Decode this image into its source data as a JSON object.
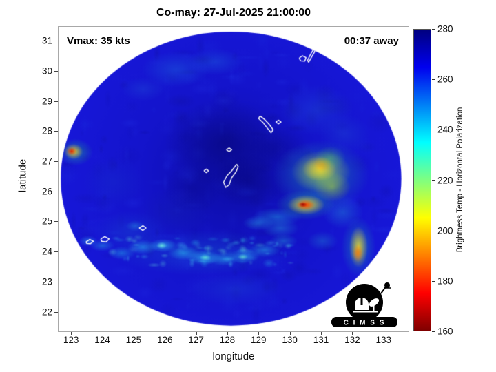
{
  "title": "Co-may: 27-Jul-2025 21:00:00",
  "annotations": {
    "vmax": "Vmax: 35 kts",
    "eta_away": "00:37 away"
  },
  "axes": {
    "xlabel": "longitude",
    "ylabel": "latitude",
    "xticks": [
      123,
      124,
      125,
      126,
      127,
      128,
      129,
      130,
      131,
      132,
      133
    ],
    "yticks": [
      22,
      23,
      24,
      25,
      26,
      27,
      28,
      29,
      30,
      31
    ]
  },
  "colorbar": {
    "label": "Brightness Temp - Horizontal Polarization",
    "range": [
      160,
      280
    ],
    "ticks": [
      160,
      180,
      200,
      220,
      240,
      260,
      280
    ],
    "stops": [
      {
        "v": 280,
        "c": "#00007f"
      },
      {
        "v": 265,
        "c": "#0000ee"
      },
      {
        "v": 235,
        "c": "#00ffff"
      },
      {
        "v": 205,
        "c": "#ffff00"
      },
      {
        "v": 175,
        "c": "#ff0000"
      },
      {
        "v": 160,
        "c": "#7f0000"
      }
    ]
  },
  "logo": {
    "text": "C I M S S"
  },
  "chart_data": {
    "type": "heatmap",
    "title": "Co-may: 27-Jul-2025 21:00:00",
    "xlabel": "longitude",
    "ylabel": "latitude",
    "xlim": [
      122.6,
      133.8
    ],
    "ylim": [
      21.35,
      31.46
    ],
    "value_units": "Brightness Temp (K) - Horizontal Polarization",
    "value_range": [
      160,
      280
    ],
    "storm": {
      "name": "Co-may",
      "datetime": "27-Jul-2025 21:00:00",
      "vmax_kts": 35,
      "eta": "00:37 away"
    },
    "disk": {
      "center": [
        128.12,
        26.42
      ],
      "radius_deg": [
        5.45,
        4.88
      ],
      "inner": "#0d0da8",
      "mid": "#1414cc",
      "outer": "#1717d8"
    },
    "noise": {
      "seed": 7.3,
      "count": 320,
      "colors": [
        "#0b0b98",
        "#1c1cd8",
        "#2336e6",
        "#0f0f8e",
        "#1a2ede"
      ],
      "a0": 0.08,
      "a1": 0.26,
      "r0": 0.08,
      "r1": 0.5
    },
    "band_noise": {
      "seed": 3.1,
      "count": 70,
      "lon": [
        124.2,
        130.1
      ],
      "lat": [
        23.55,
        24.5
      ],
      "colors": [
        "#2ab0e8",
        "#45d2f2",
        "#66e8da"
      ],
      "a0": 0.12,
      "a1": 0.4,
      "r0": 0.06,
      "r1": 0.22
    },
    "features": [
      [
        127.9,
        27.6,
        1.9,
        1.45,
        "#050568",
        0.5
      ],
      [
        128.7,
        26.35,
        1.15,
        0.9,
        "#050568",
        0.38
      ],
      [
        126.9,
        26.1,
        1.0,
        0.8,
        "#070775",
        0.3
      ],
      [
        129.6,
        27.4,
        1.0,
        0.8,
        "#060670",
        0.3
      ],
      [
        126.35,
        30.05,
        1.1,
        0.6,
        "#1e6ade",
        0.42
      ],
      [
        127.6,
        30.3,
        0.9,
        0.45,
        "#1e6ade",
        0.38
      ],
      [
        125.3,
        29.4,
        0.7,
        0.4,
        "#2158d8",
        0.32
      ],
      [
        130.85,
        28.7,
        1.2,
        0.85,
        "#2050dd",
        0.4
      ],
      [
        131.75,
        27.9,
        0.85,
        0.65,
        "#1e48d4",
        0.38
      ],
      [
        131.0,
        26.55,
        1.55,
        1.15,
        "#20b890",
        0.5
      ],
      [
        131.0,
        26.65,
        0.95,
        0.7,
        "#c8e838",
        0.65
      ],
      [
        130.95,
        26.75,
        0.55,
        0.42,
        "#ffd825",
        0.75
      ],
      [
        131.35,
        26.15,
        0.6,
        0.5,
        "#a8d838",
        0.55
      ],
      [
        131.05,
        26.9,
        0.3,
        0.24,
        "#ff9800",
        0.5
      ],
      [
        131.3,
        27.1,
        0.5,
        0.4,
        "#58c868",
        0.45
      ],
      [
        130.5,
        25.55,
        0.95,
        0.5,
        "#28c090",
        0.55
      ],
      [
        130.52,
        25.55,
        0.6,
        0.33,
        "#ffd820",
        0.85
      ],
      [
        130.5,
        25.55,
        0.3,
        0.17,
        "#f03000",
        0.95
      ],
      [
        130.42,
        25.56,
        0.13,
        0.09,
        "#990000",
        0.9
      ],
      [
        129.6,
        25.15,
        0.8,
        0.3,
        "#22a8e0",
        0.45
      ],
      [
        129.0,
        24.95,
        0.5,
        0.25,
        "#2cb8ea",
        0.4
      ],
      [
        132.2,
        24.15,
        0.55,
        1.0,
        "#20b8a0",
        0.5
      ],
      [
        132.2,
        24.15,
        0.3,
        0.68,
        "#ffe020",
        0.8
      ],
      [
        132.18,
        23.95,
        0.17,
        0.3,
        "#ff7800",
        0.8
      ],
      [
        131.7,
        25.3,
        0.65,
        0.55,
        "#2390d5",
        0.4
      ],
      [
        131.05,
        24.35,
        0.5,
        0.32,
        "#2188cc",
        0.38
      ],
      [
        123.15,
        27.3,
        0.55,
        0.45,
        "#22ad8e",
        0.55
      ],
      [
        123.08,
        27.32,
        0.3,
        0.26,
        "#ffcf20",
        0.85
      ],
      [
        123.02,
        27.33,
        0.15,
        0.13,
        "#e02400",
        0.95
      ],
      [
        127.2,
        23.95,
        2.9,
        0.75,
        "#1876d6",
        0.32
      ],
      [
        124.62,
        23.95,
        0.45,
        0.22,
        "#22a5e5",
        0.5
      ],
      [
        125.3,
        24.15,
        0.5,
        0.24,
        "#2ab4ec",
        0.55
      ],
      [
        125.95,
        24.2,
        0.45,
        0.22,
        "#32ccf4",
        0.6
      ],
      [
        126.6,
        23.95,
        0.5,
        0.24,
        "#2abcee",
        0.55
      ],
      [
        127.25,
        23.8,
        0.55,
        0.24,
        "#32ccf4",
        0.6
      ],
      [
        127.9,
        23.75,
        0.5,
        0.22,
        "#2ab4ea",
        0.55
      ],
      [
        128.55,
        23.85,
        0.5,
        0.24,
        "#30c4f0",
        0.55
      ],
      [
        129.2,
        24.05,
        0.5,
        0.24,
        "#28ace4",
        0.5
      ],
      [
        129.8,
        24.35,
        0.45,
        0.24,
        "#2295d2",
        0.45
      ],
      [
        125.9,
        24.2,
        0.17,
        0.11,
        "#7dfadf",
        0.75
      ],
      [
        127.3,
        23.8,
        0.19,
        0.11,
        "#6ef5d5",
        0.7
      ],
      [
        128.5,
        23.82,
        0.17,
        0.1,
        "#6eeecd",
        0.65
      ],
      [
        124.0,
        24.2,
        0.4,
        0.2,
        "#28aae6",
        0.45
      ],
      [
        123.55,
        24.35,
        0.3,
        0.18,
        "#2fbcee",
        0.45
      ],
      [
        125.05,
        24.85,
        0.3,
        0.18,
        "#2fb4e8",
        0.4
      ],
      [
        129.7,
        24.78,
        0.6,
        0.33,
        "#27a2da",
        0.42
      ],
      [
        128.3,
        22.75,
        1.5,
        0.55,
        "#1e50d8",
        0.32
      ],
      [
        124.9,
        24.65,
        1.2,
        0.7,
        "#1b5ccf",
        0.3
      ],
      [
        124.35,
        26.3,
        1.0,
        0.85,
        "#1736c8",
        0.3
      ],
      [
        126.3,
        25.3,
        1.2,
        0.8,
        "#14259f",
        0.25
      ]
    ],
    "islands": [
      [
        [
          128.3,
          26.9
        ],
        [
          128.14,
          26.68
        ],
        [
          127.99,
          26.52
        ],
        [
          127.88,
          26.3
        ],
        [
          127.95,
          26.13
        ],
        [
          128.06,
          26.22
        ],
        [
          128.14,
          26.45
        ],
        [
          128.28,
          26.65
        ],
        [
          128.35,
          26.82
        ],
        [
          128.3,
          26.9
        ]
      ],
      [
        [
          127.25,
          26.68
        ],
        [
          127.33,
          26.74
        ],
        [
          127.4,
          26.68
        ],
        [
          127.33,
          26.62
        ],
        [
          127.25,
          26.68
        ]
      ],
      [
        [
          127.97,
          27.38
        ],
        [
          128.06,
          27.44
        ],
        [
          128.14,
          27.38
        ],
        [
          128.06,
          27.32
        ],
        [
          127.97,
          27.38
        ]
      ],
      [
        [
          129.05,
          28.5
        ],
        [
          129.2,
          28.38
        ],
        [
          129.36,
          28.2
        ],
        [
          129.47,
          28.04
        ],
        [
          129.4,
          27.95
        ],
        [
          129.28,
          28.1
        ],
        [
          129.13,
          28.3
        ],
        [
          129.0,
          28.42
        ],
        [
          129.05,
          28.5
        ]
      ],
      [
        [
          129.55,
          28.3
        ],
        [
          129.64,
          28.36
        ],
        [
          129.72,
          28.3
        ],
        [
          129.64,
          28.24
        ],
        [
          129.55,
          28.3
        ]
      ],
      [
        [
          130.3,
          30.42
        ],
        [
          130.4,
          30.5
        ],
        [
          130.52,
          30.44
        ],
        [
          130.48,
          30.32
        ],
        [
          130.35,
          30.33
        ],
        [
          130.3,
          30.42
        ]
      ],
      [
        [
          130.6,
          30.28
        ],
        [
          130.7,
          30.46
        ],
        [
          130.8,
          30.64
        ],
        [
          130.76,
          30.72
        ],
        [
          130.65,
          30.52
        ],
        [
          130.57,
          30.35
        ],
        [
          130.6,
          30.28
        ]
      ],
      [
        [
          130.42,
          31.12
        ],
        [
          130.54,
          31.2
        ],
        [
          130.68,
          31.12
        ],
        [
          130.6,
          31.02
        ],
        [
          130.46,
          31.04
        ],
        [
          130.42,
          31.12
        ]
      ],
      [
        [
          123.48,
          24.32
        ],
        [
          123.6,
          24.4
        ],
        [
          123.72,
          24.34
        ],
        [
          123.62,
          24.26
        ],
        [
          123.5,
          24.27
        ],
        [
          123.48,
          24.32
        ]
      ],
      [
        [
          123.95,
          24.42
        ],
        [
          124.08,
          24.5
        ],
        [
          124.22,
          24.42
        ],
        [
          124.12,
          24.32
        ],
        [
          123.98,
          24.34
        ],
        [
          123.95,
          24.42
        ]
      ],
      [
        [
          125.18,
          24.78
        ],
        [
          125.3,
          24.86
        ],
        [
          125.4,
          24.78
        ],
        [
          125.3,
          24.7
        ],
        [
          125.18,
          24.78
        ]
      ]
    ]
  }
}
